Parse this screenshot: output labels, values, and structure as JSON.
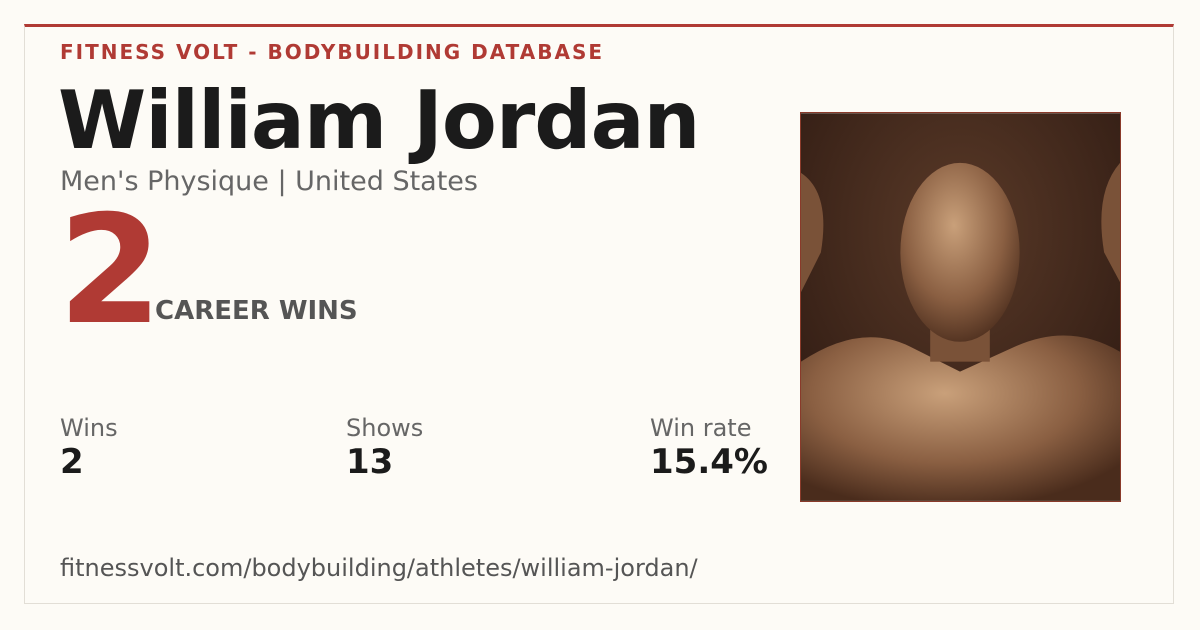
{
  "header": {
    "brand": "FITNESS VOLT - BODYBUILDING DATABASE"
  },
  "athlete": {
    "name": "William Jordan",
    "subtitle": "Men's Physique | United States"
  },
  "career_wins": {
    "value": "2",
    "label": "CAREER WINS"
  },
  "stats": [
    {
      "label": "Wins",
      "value": "2"
    },
    {
      "label": "Shows",
      "value": "13"
    },
    {
      "label": "Win rate",
      "value": "15.4%"
    }
  ],
  "footer": {
    "url": "fitnessvolt.com/bodybuilding/athletes/william-jordan/"
  }
}
